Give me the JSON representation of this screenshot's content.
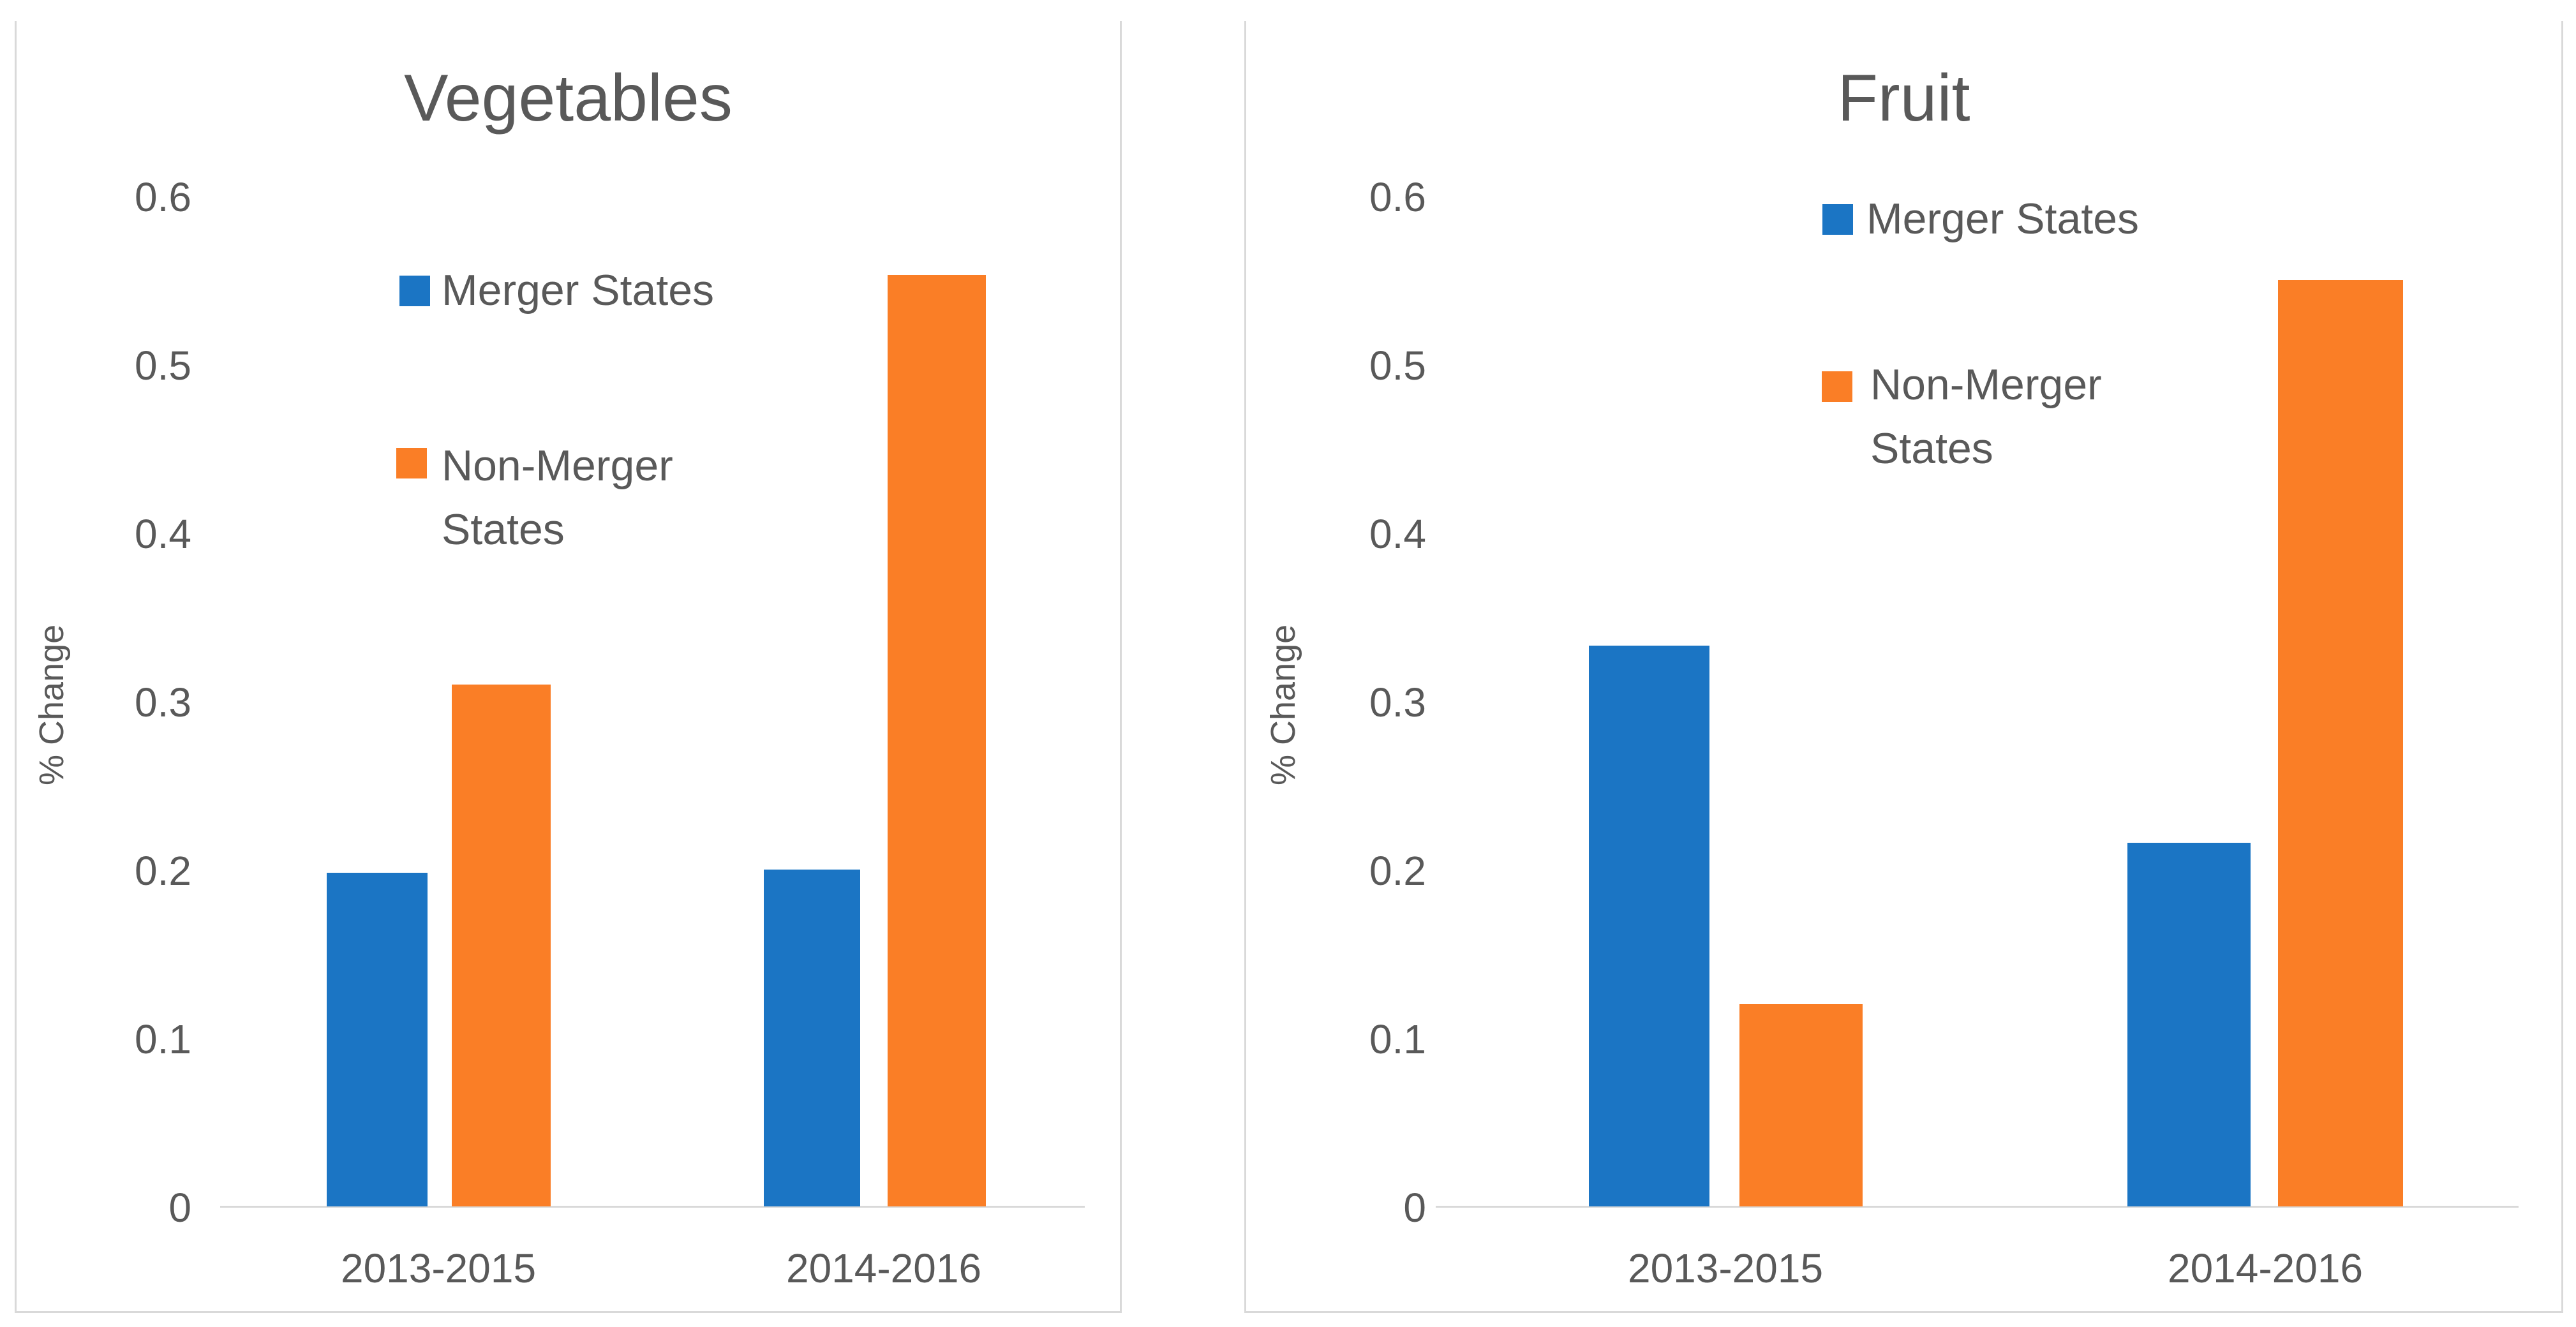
{
  "style": {
    "text_color": "#595959",
    "axis_line_color": "#D9D9D9",
    "panel_border_color": "#D9D9D9",
    "background": "#ffffff",
    "merger_color": "#1B75C4",
    "non_merger_color": "#FA7E26"
  },
  "chart_data": [
    {
      "type": "bar",
      "title": "Vegetables",
      "ylabel": "% Change",
      "xlabel": "",
      "categories": [
        "2013-2015",
        "2014-2016"
      ],
      "series": [
        {
          "name": "Merger States",
          "color": "#1B75C4",
          "values": [
            0.198,
            0.2
          ]
        },
        {
          "name": "Non-Merger States",
          "color": "#FA7E26",
          "values": [
            0.31,
            0.553
          ]
        }
      ],
      "yticks": [
        "0",
        "0.1",
        "0.2",
        "0.3",
        "0.4",
        "0.5",
        "0.6"
      ],
      "ylim": [
        0,
        0.6
      ],
      "grid": false,
      "legend_position": "inside-top-center"
    },
    {
      "type": "bar",
      "title": "Fruit",
      "ylabel": "% Change",
      "xlabel": "",
      "categories": [
        "2013-2015",
        "2014-2016"
      ],
      "series": [
        {
          "name": "Merger States",
          "color": "#1B75C4",
          "values": [
            0.333,
            0.216
          ]
        },
        {
          "name": "Non-Merger States",
          "color": "#FA7E26",
          "values": [
            0.12,
            0.55
          ]
        }
      ],
      "yticks": [
        "0",
        "0.1",
        "0.2",
        "0.3",
        "0.4",
        "0.5",
        "0.6"
      ],
      "ylim": [
        0,
        0.6
      ],
      "grid": false,
      "legend_position": "inside-top-center"
    }
  ]
}
